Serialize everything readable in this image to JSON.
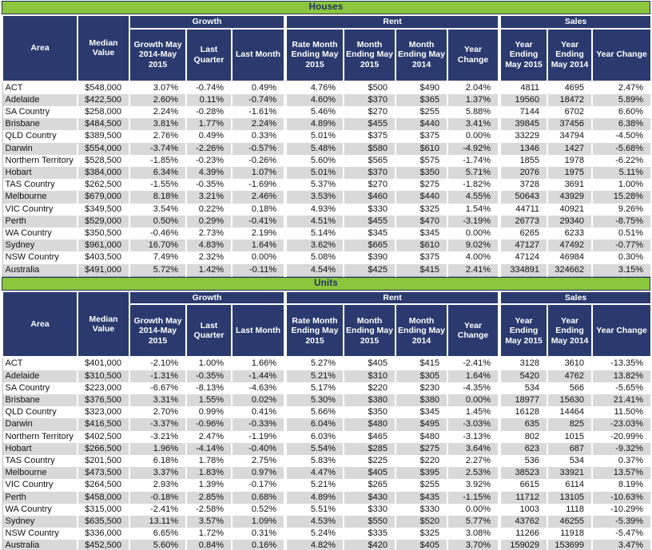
{
  "colors": {
    "title_green": "#8CC63E",
    "header_navy": "#2B3A6E",
    "stripe_gray": "#D9D9D9"
  },
  "columns": {
    "area": "Area",
    "median_value": "Median Value",
    "growth_group": "Growth",
    "growth_1y": "Growth May 2014-May 2015",
    "last_quarter": "Last Quarter",
    "last_month": "Last Month",
    "rent_group": "Rent",
    "rate_month_ending_may_2015": "Rate Month Ending May 2015",
    "month_ending_may_2015": "Month Ending May 2015",
    "month_ending_may_2014": "Month Ending May 2014",
    "rent_year_change": "Year Change",
    "sales_group": "Sales",
    "year_ending_may_2015": "Year Ending May 2015",
    "year_ending_may_2014": "Year Ending May 2014",
    "sales_year_change": "Year Change"
  },
  "tables": [
    {
      "title": "Houses",
      "rows": [
        [
          "ACT",
          "$548,000",
          "3.07%",
          "-0.74%",
          "0.49%",
          "4.76%",
          "$500",
          "$490",
          "2.04%",
          "4811",
          "4695",
          "2.47%"
        ],
        [
          "Adelaide",
          "$422,500",
          "2.60%",
          "0.11%",
          "-0.74%",
          "4.60%",
          "$370",
          "$365",
          "1.37%",
          "19560",
          "18472",
          "5.89%"
        ],
        [
          "SA Country",
          "$258,000",
          "2.24%",
          "-0.28%",
          "-1.61%",
          "5.46%",
          "$270",
          "$255",
          "5.88%",
          "7144",
          "6702",
          "6.60%"
        ],
        [
          "Brisbane",
          "$484,500",
          "3.81%",
          "1.77%",
          "2.24%",
          "4.89%",
          "$455",
          "$440",
          "3.41%",
          "39845",
          "37456",
          "6.38%"
        ],
        [
          "QLD Country",
          "$389,500",
          "2.76%",
          "0.49%",
          "0.33%",
          "5.01%",
          "$375",
          "$375",
          "0.00%",
          "33229",
          "34794",
          "-4.50%"
        ],
        [
          "Darwin",
          "$554,000",
          "-3.74%",
          "-2.26%",
          "-0.57%",
          "5.48%",
          "$580",
          "$610",
          "-4.92%",
          "1346",
          "1427",
          "-5.68%"
        ],
        [
          "Northern Territory",
          "$528,500",
          "-1.85%",
          "-0.23%",
          "-0.26%",
          "5.60%",
          "$565",
          "$575",
          "-1.74%",
          "1855",
          "1978",
          "-6.22%"
        ],
        [
          "Hobart",
          "$384,000",
          "6.34%",
          "4.39%",
          "1.07%",
          "5.01%",
          "$370",
          "$350",
          "5.71%",
          "2076",
          "1975",
          "5.11%"
        ],
        [
          "TAS Country",
          "$262,500",
          "-1.55%",
          "-0.35%",
          "-1.69%",
          "5.37%",
          "$270",
          "$275",
          "-1.82%",
          "3728",
          "3691",
          "1.00%"
        ],
        [
          "Melbourne",
          "$679,000",
          "8.18%",
          "3.21%",
          "2.46%",
          "3.53%",
          "$460",
          "$440",
          "4.55%",
          "50643",
          "43929",
          "15.28%"
        ],
        [
          "VIC Country",
          "$349,500",
          "3.54%",
          "0.22%",
          "0.18%",
          "4.93%",
          "$330",
          "$325",
          "1.54%",
          "44711",
          "40921",
          "9.26%"
        ],
        [
          "Perth",
          "$529,000",
          "0.50%",
          "0.29%",
          "-0.41%",
          "4.51%",
          "$455",
          "$470",
          "-3.19%",
          "26773",
          "29340",
          "-8.75%"
        ],
        [
          "WA Country",
          "$350,500",
          "-0.46%",
          "2.73%",
          "2.19%",
          "5.14%",
          "$345",
          "$345",
          "0.00%",
          "6265",
          "6233",
          "0.51%"
        ],
        [
          "Sydney",
          "$961,000",
          "16.70%",
          "4.83%",
          "1.64%",
          "3.62%",
          "$665",
          "$610",
          "9.02%",
          "47127",
          "47492",
          "-0.77%"
        ],
        [
          "NSW Country",
          "$403,500",
          "7.49%",
          "2.32%",
          "0.00%",
          "5.08%",
          "$390",
          "$375",
          "4.00%",
          "47124",
          "46984",
          "0.30%"
        ],
        [
          "Australia",
          "$491,000",
          "5.72%",
          "1.42%",
          "-0.11%",
          "4.54%",
          "$425",
          "$415",
          "2.41%",
          "334891",
          "324662",
          "3.15%"
        ]
      ]
    },
    {
      "title": "Units",
      "rows": [
        [
          "ACT",
          "$401,000",
          "-2.10%",
          "1.00%",
          "1.66%",
          "5.27%",
          "$405",
          "$415",
          "-2.41%",
          "3128",
          "3610",
          "-13.35%"
        ],
        [
          "Adelaide",
          "$310,500",
          "-1.31%",
          "-0.35%",
          "-1.44%",
          "5.21%",
          "$310",
          "$305",
          "1.64%",
          "5420",
          "4762",
          "13.82%"
        ],
        [
          "SA Country",
          "$223,000",
          "-6.67%",
          "-8.13%",
          "-4.63%",
          "5.17%",
          "$220",
          "$230",
          "-4.35%",
          "534",
          "566",
          "-5.65%"
        ],
        [
          "Brisbane",
          "$376,500",
          "3.31%",
          "1.55%",
          "0.02%",
          "5.30%",
          "$380",
          "$380",
          "0.00%",
          "18977",
          "15630",
          "21.41%"
        ],
        [
          "QLD Country",
          "$323,000",
          "2.70%",
          "0.99%",
          "0.41%",
          "5.66%",
          "$350",
          "$345",
          "1.45%",
          "16128",
          "14464",
          "11.50%"
        ],
        [
          "Darwin",
          "$416,500",
          "-3.37%",
          "-0.96%",
          "-0.33%",
          "6.04%",
          "$480",
          "$495",
          "-3.03%",
          "635",
          "825",
          "-23.03%"
        ],
        [
          "Northern Territory",
          "$402,500",
          "-3.21%",
          "2.47%",
          "-1.19%",
          "6.03%",
          "$465",
          "$480",
          "-3.13%",
          "802",
          "1015",
          "-20.99%"
        ],
        [
          "Hobart",
          "$266,500",
          "1.96%",
          "-4.14%",
          "-0.40%",
          "5.54%",
          "$285",
          "$275",
          "3.64%",
          "623",
          "687",
          "-9.32%"
        ],
        [
          "TAS Country",
          "$201,500",
          "6.18%",
          "1.78%",
          "2.75%",
          "5.83%",
          "$225",
          "$220",
          "2.27%",
          "536",
          "534",
          "0.37%"
        ],
        [
          "Melbourne",
          "$473,500",
          "3.37%",
          "1.83%",
          "0.97%",
          "4.47%",
          "$405",
          "$395",
          "2.53%",
          "38523",
          "33921",
          "13.57%"
        ],
        [
          "VIC Country",
          "$264,500",
          "2.93%",
          "1.39%",
          "-0.17%",
          "5.21%",
          "$265",
          "$255",
          "3.92%",
          "6615",
          "6114",
          "8.19%"
        ],
        [
          "Perth",
          "$458,000",
          "-0.18%",
          "2.85%",
          "0.68%",
          "4.89%",
          "$430",
          "$435",
          "-1.15%",
          "11712",
          "13105",
          "-10.63%"
        ],
        [
          "WA Country",
          "$315,000",
          "-2.41%",
          "-2.58%",
          "0.52%",
          "5.51%",
          "$330",
          "$330",
          "0.00%",
          "1003",
          "1118",
          "-10.29%"
        ],
        [
          "Sydney",
          "$635,500",
          "13.11%",
          "3.57%",
          "1.09%",
          "4.53%",
          "$550",
          "$520",
          "5.77%",
          "43762",
          "46255",
          "-5.39%"
        ],
        [
          "NSW Country",
          "$336,000",
          "6.65%",
          "1.72%",
          "0.31%",
          "5.24%",
          "$335",
          "$325",
          "3.08%",
          "11266",
          "11918",
          "-5.47%"
        ],
        [
          "Australia",
          "$452,500",
          "5.60%",
          "0.84%",
          "0.16%",
          "4.82%",
          "$420",
          "$405",
          "3.70%",
          "159029",
          "153699",
          "3.47%"
        ]
      ]
    }
  ]
}
